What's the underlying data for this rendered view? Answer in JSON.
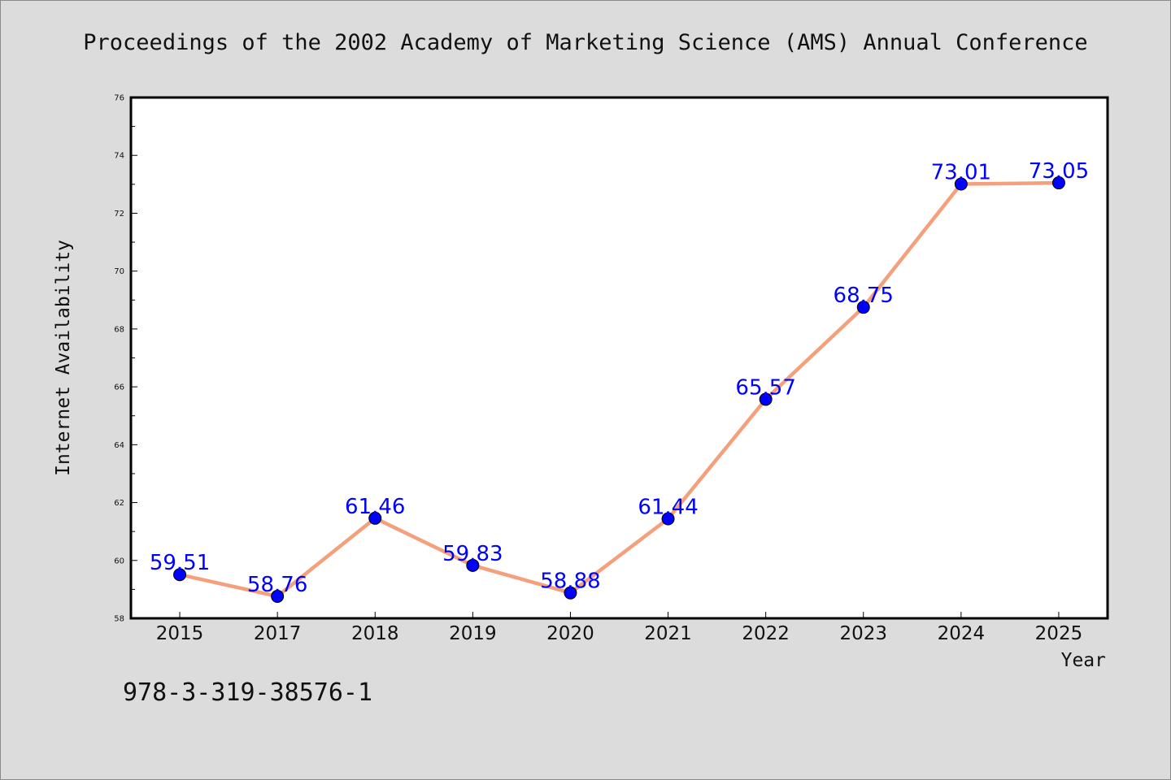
{
  "page": {
    "title": "Proceedings of the 2002 Academy of Marketing Science (AMS) Annual Conference",
    "footnote": "978-3-319-38576-1"
  },
  "chart_data": {
    "type": "line",
    "title": "Proceedings of the 2002 Academy of Marketing Science (AMS) Annual Conference",
    "xlabel": "Year",
    "ylabel": "Internet Availability",
    "categories": [
      "2015",
      "2017",
      "2018",
      "2019",
      "2020",
      "2021",
      "2022",
      "2023",
      "2024",
      "2025"
    ],
    "values": [
      59.51,
      58.76,
      61.46,
      59.83,
      58.88,
      61.44,
      65.57,
      68.75,
      73.01,
      73.05
    ],
    "data_labels": [
      "59.51",
      "58.76",
      "61.46",
      "59.83",
      "58.88",
      "61.44",
      "65.57",
      "68.75",
      "73.01",
      "73.05"
    ],
    "ylim": [
      58,
      76
    ],
    "yticks": [
      58,
      60,
      62,
      64,
      66,
      68,
      70,
      72,
      74,
      76
    ],
    "grid": false,
    "legend": "none",
    "colors": {
      "line": "#f4a07c",
      "marker": "#0000ff",
      "data_label": "#0000ff",
      "plot_background": "#ffffff",
      "page_background": "#dcdcdc"
    }
  }
}
